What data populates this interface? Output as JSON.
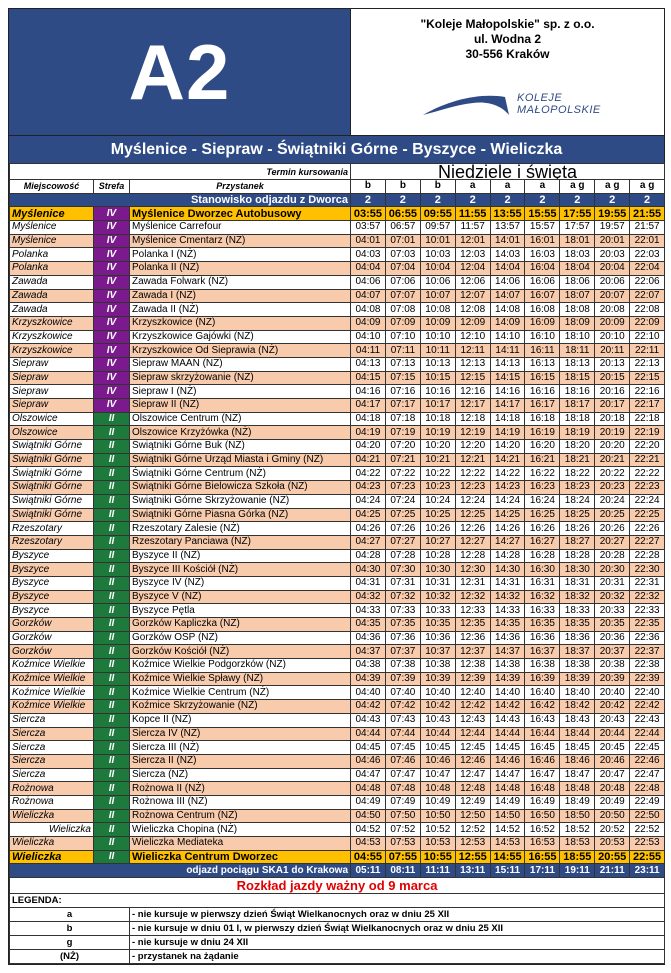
{
  "header": {
    "line": "A2",
    "company": [
      "\"Koleje Małopolskie\" sp. z o.o.",
      "ul. Wodna 2",
      "30-556 Kraków"
    ],
    "logo_text": [
      "KOLEJE",
      "MAŁOPOLSKIE"
    ],
    "route": "Myślenice - Siepraw - Świątniki Górne - Byszyce - Wieliczka"
  },
  "colors": {
    "brand_blue": "#2f4b86",
    "zone_IV": "#7a1a8c",
    "zone_II": "#1e7a3c",
    "highlight": "#ffc000",
    "alt_row": "#f8cbad",
    "validity": "#e00000"
  },
  "table": {
    "termin_label": "Termin kursowania",
    "day_type": "Niedziele i święta",
    "col_headers": [
      "Miejscowość",
      "Strefa",
      "Przystanek"
    ],
    "notes": [
      "b",
      "b",
      "b",
      "a",
      "a",
      "a",
      "a g",
      "a g",
      "a g"
    ],
    "platform_label": "Stanowisko odjazdu z Dworca",
    "platforms": [
      "2",
      "2",
      "2",
      "2",
      "2",
      "2",
      "2",
      "2",
      "2"
    ],
    "rows": [
      {
        "loc": "Myślenice",
        "zone": "IV",
        "stop": "Myślenice Dworzec Autobusowy",
        "times": [
          "03:55",
          "06:55",
          "09:55",
          "11:55",
          "13:55",
          "15:55",
          "17:55",
          "19:55",
          "21:55"
        ]
      },
      {
        "loc": "Myślenice",
        "zone": "IV",
        "stop": "Myślenice Carrefour",
        "times": [
          "03:57",
          "06:57",
          "09:57",
          "11:57",
          "13:57",
          "15:57",
          "17:57",
          "19:57",
          "21:57"
        ]
      },
      {
        "loc": "Myślenice",
        "zone": "IV",
        "stop": "Myślenice Cmentarz (NŻ)",
        "times": [
          "04:01",
          "07:01",
          "10:01",
          "12:01",
          "14:01",
          "16:01",
          "18:01",
          "20:01",
          "22:01"
        ]
      },
      {
        "loc": "Polanka",
        "zone": "IV",
        "stop": "Polanka I (NŻ)",
        "times": [
          "04:03",
          "07:03",
          "10:03",
          "12:03",
          "14:03",
          "16:03",
          "18:03",
          "20:03",
          "22:03"
        ]
      },
      {
        "loc": "Polanka",
        "zone": "IV",
        "stop": "Polanka II (NŻ)",
        "times": [
          "04:04",
          "07:04",
          "10:04",
          "12:04",
          "14:04",
          "16:04",
          "18:04",
          "20:04",
          "22:04"
        ]
      },
      {
        "loc": "Zawada",
        "zone": "IV",
        "stop": "Zawada Folwark (NŻ)",
        "times": [
          "04:06",
          "07:06",
          "10:06",
          "12:06",
          "14:06",
          "16:06",
          "18:06",
          "20:06",
          "22:06"
        ]
      },
      {
        "loc": "Zawada",
        "zone": "IV",
        "stop": "Zawada I (NŻ)",
        "times": [
          "04:07",
          "07:07",
          "10:07",
          "12:07",
          "14:07",
          "16:07",
          "18:07",
          "20:07",
          "22:07"
        ]
      },
      {
        "loc": "Zawada",
        "zone": "IV",
        "stop": "Zawada II (NŻ)",
        "times": [
          "04:08",
          "07:08",
          "10:08",
          "12:08",
          "14:08",
          "16:08",
          "18:08",
          "20:08",
          "22:08"
        ]
      },
      {
        "loc": "Krzyszkowice",
        "zone": "IV",
        "stop": "Krzyszkowice (NŻ)",
        "times": [
          "04:09",
          "07:09",
          "10:09",
          "12:09",
          "14:09",
          "16:09",
          "18:09",
          "20:09",
          "22:09"
        ]
      },
      {
        "loc": "Krzyszkowice",
        "zone": "IV",
        "stop": "Krzyszkowice Gajówki (NŻ)",
        "times": [
          "04:10",
          "07:10",
          "10:10",
          "12:10",
          "14:10",
          "16:10",
          "18:10",
          "20:10",
          "22:10"
        ]
      },
      {
        "loc": "Krzyszkowice",
        "zone": "IV",
        "stop": "Krzyszkowice Od Sieprawia (NŻ)",
        "times": [
          "04:11",
          "07:11",
          "10:11",
          "12:11",
          "14:11",
          "16:11",
          "18:11",
          "20:11",
          "22:11"
        ]
      },
      {
        "loc": "Siepraw",
        "zone": "IV",
        "stop": "Siepraw MAAN (NŻ)",
        "times": [
          "04:13",
          "07:13",
          "10:13",
          "12:13",
          "14:13",
          "16:13",
          "18:13",
          "20:13",
          "22:13"
        ]
      },
      {
        "loc": "Siepraw",
        "zone": "IV",
        "stop": "Siepraw skrzyżowanie (NŻ)",
        "times": [
          "04:15",
          "07:15",
          "10:15",
          "12:15",
          "14:15",
          "16:15",
          "18:15",
          "20:15",
          "22:15"
        ]
      },
      {
        "loc": "Siepraw",
        "zone": "IV",
        "stop": "Siepraw I (NŻ)",
        "times": [
          "04:16",
          "07:16",
          "10:16",
          "12:16",
          "14:16",
          "16:16",
          "18:16",
          "20:16",
          "22:16"
        ]
      },
      {
        "loc": "Siepraw",
        "zone": "IV",
        "stop": "Siepraw II (NŻ)",
        "times": [
          "04:17",
          "07:17",
          "10:17",
          "12:17",
          "14:17",
          "16:17",
          "18:17",
          "20:17",
          "22:17"
        ]
      },
      {
        "loc": "Olszowice",
        "zone": "II",
        "stop": "Olszowice Centrum (NŻ)",
        "times": [
          "04:18",
          "07:18",
          "10:18",
          "12:18",
          "14:18",
          "16:18",
          "18:18",
          "20:18",
          "22:18"
        ]
      },
      {
        "loc": "Olszowice",
        "zone": "II",
        "stop": "Olszowice Krzyżówka (NŻ)",
        "times": [
          "04:19",
          "07:19",
          "10:19",
          "12:19",
          "14:19",
          "16:19",
          "18:19",
          "20:19",
          "22:19"
        ]
      },
      {
        "loc": "Świątniki Górne",
        "zone": "II",
        "stop": "Świątniki Górne Buk (NŻ)",
        "times": [
          "04:20",
          "07:20",
          "10:20",
          "12:20",
          "14:20",
          "16:20",
          "18:20",
          "20:20",
          "22:20"
        ]
      },
      {
        "loc": "Świątniki Górne",
        "zone": "II",
        "stop": "Świątniki Górne Urząd Miasta i Gminy (NŻ)",
        "times": [
          "04:21",
          "07:21",
          "10:21",
          "12:21",
          "14:21",
          "16:21",
          "18:21",
          "20:21",
          "22:21"
        ]
      },
      {
        "loc": "Świątniki Górne",
        "zone": "II",
        "stop": "Świątniki Górne Centrum (NŻ)",
        "times": [
          "04:22",
          "07:22",
          "10:22",
          "12:22",
          "14:22",
          "16:22",
          "18:22",
          "20:22",
          "22:22"
        ]
      },
      {
        "loc": "Świątniki Górne",
        "zone": "II",
        "stop": "Świątniki Górne Bielowicza Szkoła (NŻ)",
        "times": [
          "04:23",
          "07:23",
          "10:23",
          "12:23",
          "14:23",
          "16:23",
          "18:23",
          "20:23",
          "22:23"
        ]
      },
      {
        "loc": "Świątniki Górne",
        "zone": "II",
        "stop": "Świątniki Górne Skrzyżowanie (NŻ)",
        "times": [
          "04:24",
          "07:24",
          "10:24",
          "12:24",
          "14:24",
          "16:24",
          "18:24",
          "20:24",
          "22:24"
        ]
      },
      {
        "loc": "Świątniki Górne",
        "zone": "II",
        "stop": "Świątniki Górne Piasna Górka (NŻ)",
        "times": [
          "04:25",
          "07:25",
          "10:25",
          "12:25",
          "14:25",
          "16:25",
          "18:25",
          "20:25",
          "22:25"
        ]
      },
      {
        "loc": "Rzeszotary",
        "zone": "II",
        "stop": "Rzeszotary Zalesie (NŻ)",
        "times": [
          "04:26",
          "07:26",
          "10:26",
          "12:26",
          "14:26",
          "16:26",
          "18:26",
          "20:26",
          "22:26"
        ]
      },
      {
        "loc": "Rzeszotary",
        "zone": "II",
        "stop": "Rzeszotary Panciawa (NŻ)",
        "times": [
          "04:27",
          "07:27",
          "10:27",
          "12:27",
          "14:27",
          "16:27",
          "18:27",
          "20:27",
          "22:27"
        ]
      },
      {
        "loc": "Byszyce",
        "zone": "II",
        "stop": "Byszyce II (NŻ)",
        "times": [
          "04:28",
          "07:28",
          "10:28",
          "12:28",
          "14:28",
          "16:28",
          "18:28",
          "20:28",
          "22:28"
        ]
      },
      {
        "loc": "Byszyce",
        "zone": "II",
        "stop": "Byszyce III Kościół (NŻ)",
        "times": [
          "04:30",
          "07:30",
          "10:30",
          "12:30",
          "14:30",
          "16:30",
          "18:30",
          "20:30",
          "22:30"
        ]
      },
      {
        "loc": "Byszyce",
        "zone": "II",
        "stop": "Byszyce IV (NŻ)",
        "times": [
          "04:31",
          "07:31",
          "10:31",
          "12:31",
          "14:31",
          "16:31",
          "18:31",
          "20:31",
          "22:31"
        ]
      },
      {
        "loc": "Byszyce",
        "zone": "II",
        "stop": "Byszyce V (NŻ)",
        "times": [
          "04:32",
          "07:32",
          "10:32",
          "12:32",
          "14:32",
          "16:32",
          "18:32",
          "20:32",
          "22:32"
        ]
      },
      {
        "loc": "Byszyce",
        "zone": "II",
        "stop": "Byszyce Pętla",
        "times": [
          "04:33",
          "07:33",
          "10:33",
          "12:33",
          "14:33",
          "16:33",
          "18:33",
          "20:33",
          "22:33"
        ]
      },
      {
        "loc": "Gorzków",
        "zone": "II",
        "stop": "Gorzków Kapliczka (NŻ)",
        "times": [
          "04:35",
          "07:35",
          "10:35",
          "12:35",
          "14:35",
          "16:35",
          "18:35",
          "20:35",
          "22:35"
        ]
      },
      {
        "loc": "Gorzków",
        "zone": "II",
        "stop": "Gorzków OSP (NŻ)",
        "times": [
          "04:36",
          "07:36",
          "10:36",
          "12:36",
          "14:36",
          "16:36",
          "18:36",
          "20:36",
          "22:36"
        ]
      },
      {
        "loc": "Gorzków",
        "zone": "II",
        "stop": "Gorzków Kościół (NŻ)",
        "times": [
          "04:37",
          "07:37",
          "10:37",
          "12:37",
          "14:37",
          "16:37",
          "18:37",
          "20:37",
          "22:37"
        ]
      },
      {
        "loc": "Koźmice Wielkie",
        "zone": "II",
        "stop": "Koźmice Wielkie Podgorzków (NŻ)",
        "times": [
          "04:38",
          "07:38",
          "10:38",
          "12:38",
          "14:38",
          "16:38",
          "18:38",
          "20:38",
          "22:38"
        ]
      },
      {
        "loc": "Koźmice Wielkie",
        "zone": "II",
        "stop": "Koźmice Wielkie Spławy (NŻ)",
        "times": [
          "04:39",
          "07:39",
          "10:39",
          "12:39",
          "14:39",
          "16:39",
          "18:39",
          "20:39",
          "22:39"
        ]
      },
      {
        "loc": "Koźmice Wielkie",
        "zone": "II",
        "stop": "Koźmice Wielkie Centrum (NŻ)",
        "times": [
          "04:40",
          "07:40",
          "10:40",
          "12:40",
          "14:40",
          "16:40",
          "18:40",
          "20:40",
          "22:40"
        ]
      },
      {
        "loc": "Koźmice Wielkie",
        "zone": "II",
        "stop": "Koźmice Skrzyżowanie (NŻ)",
        "times": [
          "04:42",
          "07:42",
          "10:42",
          "12:42",
          "14:42",
          "16:42",
          "18:42",
          "20:42",
          "22:42"
        ]
      },
      {
        "loc": "Siercza",
        "zone": "II",
        "stop": "Kopce II (NŻ)",
        "times": [
          "04:43",
          "07:43",
          "10:43",
          "12:43",
          "14:43",
          "16:43",
          "18:43",
          "20:43",
          "22:43"
        ]
      },
      {
        "loc": "Siercza",
        "zone": "II",
        "stop": "Siercza IV (NŻ)",
        "times": [
          "04:44",
          "07:44",
          "10:44",
          "12:44",
          "14:44",
          "16:44",
          "18:44",
          "20:44",
          "22:44"
        ]
      },
      {
        "loc": "Siercza",
        "zone": "II",
        "stop": "Siercza III (NŻ)",
        "times": [
          "04:45",
          "07:45",
          "10:45",
          "12:45",
          "14:45",
          "16:45",
          "18:45",
          "20:45",
          "22:45"
        ]
      },
      {
        "loc": "Siercza",
        "zone": "II",
        "stop": "Siercza II (NŻ)",
        "times": [
          "04:46",
          "07:46",
          "10:46",
          "12:46",
          "14:46",
          "16:46",
          "18:46",
          "20:46",
          "22:46"
        ]
      },
      {
        "loc": "Siercza",
        "zone": "II",
        "stop": "Siercza (NŻ)",
        "times": [
          "04:47",
          "07:47",
          "10:47",
          "12:47",
          "14:47",
          "16:47",
          "18:47",
          "20:47",
          "22:47"
        ]
      },
      {
        "loc": "Rożnowa",
        "zone": "II",
        "stop": "Rożnowa II (NŻ)",
        "times": [
          "04:48",
          "07:48",
          "10:48",
          "12:48",
          "14:48",
          "16:48",
          "18:48",
          "20:48",
          "22:48"
        ]
      },
      {
        "loc": "Rożnowa",
        "zone": "II",
        "stop": "Rożnowa III (NŻ)",
        "times": [
          "04:49",
          "07:49",
          "10:49",
          "12:49",
          "14:49",
          "16:49",
          "18:49",
          "20:49",
          "22:49"
        ]
      },
      {
        "loc": "Wieliczka",
        "zone": "II",
        "stop": "Rożnowa Centrum (NŻ)",
        "times": [
          "04:50",
          "07:50",
          "10:50",
          "12:50",
          "14:50",
          "16:50",
          "18:50",
          "20:50",
          "22:50"
        ]
      },
      {
        "loc": "Wieliczka",
        "zone": "II",
        "stop": "Wieliczka Chopina (NŻ)",
        "times": [
          "04:52",
          "07:52",
          "10:52",
          "12:52",
          "14:52",
          "16:52",
          "18:52",
          "20:52",
          "22:52"
        ]
      },
      {
        "loc": "Wieliczka",
        "zone": "II",
        "stop": "Wieliczka Mediateka",
        "times": [
          "04:53",
          "07:53",
          "10:53",
          "12:53",
          "14:53",
          "16:53",
          "18:53",
          "20:53",
          "22:53"
        ]
      },
      {
        "loc": "Wieliczka",
        "zone": "II",
        "stop": "Wieliczka Centrum Dworzec",
        "times": [
          "04:55",
          "07:55",
          "10:55",
          "12:55",
          "14:55",
          "16:55",
          "18:55",
          "20:55",
          "22:55"
        ]
      }
    ],
    "train_label": "odjazd pociągu SKA1 do Krakowa",
    "train_times": [
      "05:11",
      "08:11",
      "11:11",
      "13:11",
      "15:11",
      "17:11",
      "19:11",
      "21:11",
      "23:11"
    ]
  },
  "validity": "Rozkład jazdy ważny od 9 marca",
  "legend": {
    "title": "LEGENDA:",
    "items": [
      {
        "key": "a",
        "text": "- nie kursuje w pierwszy dzień Świąt Wielkanocnych oraz w dniu 25 XII"
      },
      {
        "key": "b",
        "text": "- nie kursuje w dniu 01 I, w pierwszy dzień Świąt Wielkanocnych oraz w dniu 25 XII"
      },
      {
        "key": "g",
        "text": "- nie kursuje w dniu 24 XII"
      },
      {
        "key": "(NŻ)",
        "text": "- przystanek na żądanie"
      }
    ]
  }
}
